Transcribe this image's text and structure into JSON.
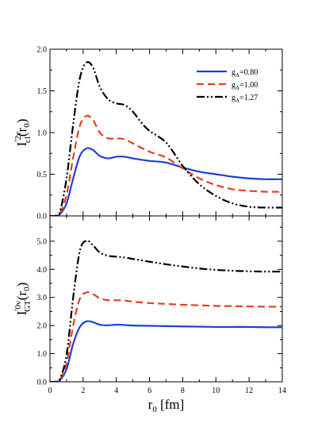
{
  "chart_data": [
    {
      "type": "line",
      "panel": "top",
      "ylabel_main": "I",
      "ylabel_prime": "'",
      "ylabel_sup": "2ν",
      "ylabel_sub": "cl",
      "ylabel_arg": "(r",
      "ylabel_arg_sub": "0",
      "ylabel_close": ")",
      "xlim": [
        0,
        14
      ],
      "ylim": [
        0,
        2.0
      ],
      "yticks": [
        "0.0",
        "0.5",
        "1.0",
        "1.5",
        "2.0"
      ],
      "legend_position": "top-right",
      "series": [
        {
          "name": "g_A=0.80",
          "legend_main": "g",
          "legend_sub": "A",
          "legend_value": "=0.80",
          "color": "#1f3fd6",
          "dash": "solid",
          "x": [
            0,
            0.3,
            0.6,
            1.0,
            1.4,
            1.8,
            2.2,
            2.6,
            3.0,
            3.5,
            4.0,
            4.5,
            5.0,
            6.0,
            7.0,
            8.0,
            9.0,
            10.0,
            11.0,
            12.0,
            13.0,
            14.0
          ],
          "y": [
            0,
            0.0,
            0.02,
            0.15,
            0.45,
            0.72,
            0.81,
            0.79,
            0.72,
            0.69,
            0.71,
            0.71,
            0.69,
            0.66,
            0.64,
            0.58,
            0.53,
            0.5,
            0.47,
            0.45,
            0.44,
            0.44
          ]
        },
        {
          "name": "g_A=1.00",
          "legend_main": "g",
          "legend_sub": "A",
          "legend_value": "=1.00",
          "color": "#e5401c",
          "dash": "dashed",
          "x": [
            0,
            0.3,
            0.6,
            1.0,
            1.4,
            1.8,
            2.2,
            2.6,
            3.0,
            3.5,
            4.0,
            4.5,
            5.0,
            6.0,
            7.0,
            8.0,
            9.0,
            10.0,
            11.0,
            12.0,
            13.0,
            14.0
          ],
          "y": [
            0,
            0.0,
            0.03,
            0.25,
            0.7,
            1.08,
            1.2,
            1.15,
            1.0,
            0.93,
            0.93,
            0.92,
            0.87,
            0.77,
            0.7,
            0.57,
            0.45,
            0.37,
            0.32,
            0.3,
            0.29,
            0.29
          ]
        },
        {
          "name": "g_A=1.27",
          "legend_main": "g",
          "legend_sub": "A",
          "legend_value": "=1.27",
          "color": "#000000",
          "dash": "dashdotdot",
          "x": [
            0,
            0.3,
            0.6,
            1.0,
            1.4,
            1.8,
            2.2,
            2.6,
            3.0,
            3.5,
            4.0,
            4.5,
            5.0,
            5.5,
            6.0,
            7.0,
            8.0,
            9.0,
            10.0,
            11.0,
            12.0,
            13.0,
            14.0
          ],
          "y": [
            0,
            0.0,
            0.05,
            0.45,
            1.1,
            1.65,
            1.84,
            1.78,
            1.55,
            1.4,
            1.35,
            1.33,
            1.25,
            1.12,
            1.02,
            0.88,
            0.6,
            0.38,
            0.24,
            0.15,
            0.11,
            0.1,
            0.1
          ]
        }
      ]
    },
    {
      "type": "line",
      "panel": "bottom",
      "ylabel_main": "I",
      "ylabel_prime": "'",
      "ylabel_sup": "0ν",
      "ylabel_sub": "GT",
      "ylabel_arg": "(r",
      "ylabel_arg_sub": "0",
      "ylabel_close": ")",
      "xlabel_main": "r",
      "xlabel_sub": "0",
      "xlabel_unit": " [fm]",
      "xlim": [
        0,
        14
      ],
      "ylim": [
        0,
        5.9
      ],
      "yticks": [
        "0.0",
        "1.0",
        "2.0",
        "3.0",
        "4.0",
        "5.0"
      ],
      "xticks": [
        "0",
        "2",
        "4",
        "6",
        "8",
        "10",
        "12",
        "14"
      ],
      "series": [
        {
          "name": "g_A=0.80",
          "color": "#1f3fd6",
          "dash": "solid",
          "x": [
            0,
            0.3,
            0.6,
            1.0,
            1.4,
            1.8,
            2.2,
            2.6,
            3.0,
            3.5,
            4.0,
            4.5,
            5.0,
            6.0,
            7.0,
            8.0,
            9.0,
            10.0,
            11.0,
            12.0,
            13.0,
            14.0
          ],
          "y": [
            0,
            0.0,
            0.05,
            0.45,
            1.35,
            1.95,
            2.15,
            2.12,
            2.03,
            2.01,
            2.03,
            2.02,
            2.0,
            1.99,
            1.98,
            1.97,
            1.96,
            1.95,
            1.95,
            1.95,
            1.94,
            1.94
          ]
        },
        {
          "name": "g_A=1.00",
          "color": "#e5401c",
          "dash": "dashed",
          "x": [
            0,
            0.3,
            0.6,
            1.0,
            1.4,
            1.8,
            2.2,
            2.6,
            3.0,
            3.5,
            4.0,
            4.5,
            5.0,
            6.0,
            7.0,
            8.0,
            9.0,
            10.0,
            11.0,
            12.0,
            13.0,
            14.0
          ],
          "y": [
            0,
            0.0,
            0.07,
            0.65,
            2.0,
            2.95,
            3.18,
            3.12,
            2.97,
            2.9,
            2.9,
            2.89,
            2.85,
            2.8,
            2.77,
            2.74,
            2.72,
            2.7,
            2.69,
            2.68,
            2.67,
            2.67
          ]
        },
        {
          "name": "g_A=1.27",
          "color": "#000000",
          "dash": "dashdotdot",
          "x": [
            0,
            0.3,
            0.6,
            1.0,
            1.4,
            1.8,
            2.2,
            2.6,
            3.0,
            3.5,
            4.0,
            4.5,
            5.0,
            6.0,
            7.0,
            8.0,
            9.0,
            10.0,
            11.0,
            12.0,
            13.0,
            14.0
          ],
          "y": [
            0,
            0.0,
            0.1,
            0.95,
            3.0,
            4.65,
            5.02,
            4.85,
            4.6,
            4.48,
            4.45,
            4.42,
            4.37,
            4.27,
            4.18,
            4.1,
            4.03,
            3.98,
            3.95,
            3.93,
            3.92,
            3.92
          ]
        }
      ]
    }
  ]
}
